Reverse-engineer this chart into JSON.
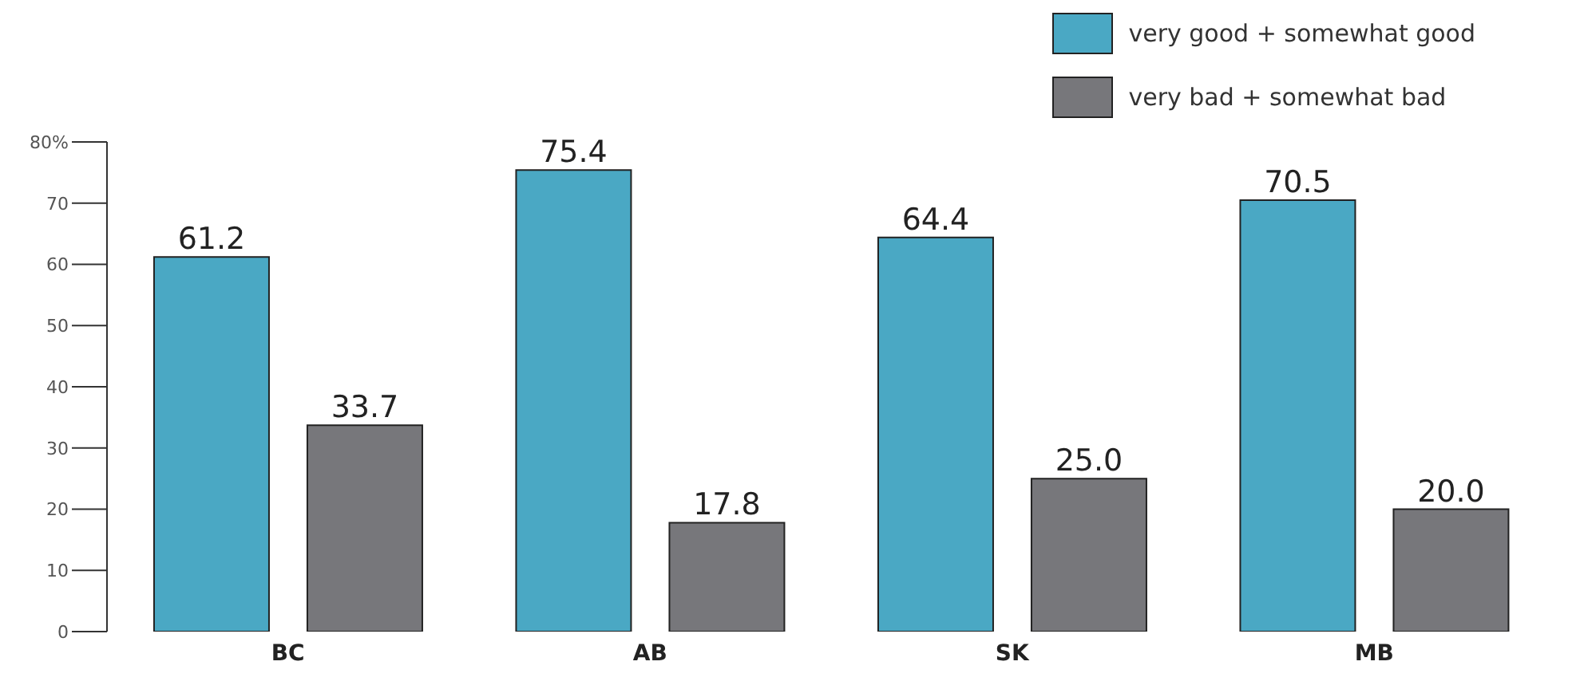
{
  "chart_data": {
    "type": "bar",
    "categories": [
      "BC",
      "AB",
      "SK",
      "MB"
    ],
    "series": [
      {
        "name": "very good + somewhat good",
        "color": "#4aa8c4",
        "values": [
          61.2,
          75.4,
          64.4,
          70.5
        ],
        "value_labels": [
          "61.2",
          "75.4",
          "64.4",
          "70.5"
        ]
      },
      {
        "name": "very bad + somewhat bad",
        "color": "#77777b",
        "values": [
          33.7,
          17.8,
          25.0,
          20.0
        ],
        "value_labels": [
          "33.7",
          "17.8",
          "25.0",
          "20.0"
        ]
      }
    ],
    "ylim": [
      0,
      80
    ],
    "yticks": [
      0,
      10,
      20,
      30,
      40,
      50,
      60,
      70,
      {
        "value": 80,
        "label": "80%"
      }
    ],
    "legend": "top right"
  }
}
